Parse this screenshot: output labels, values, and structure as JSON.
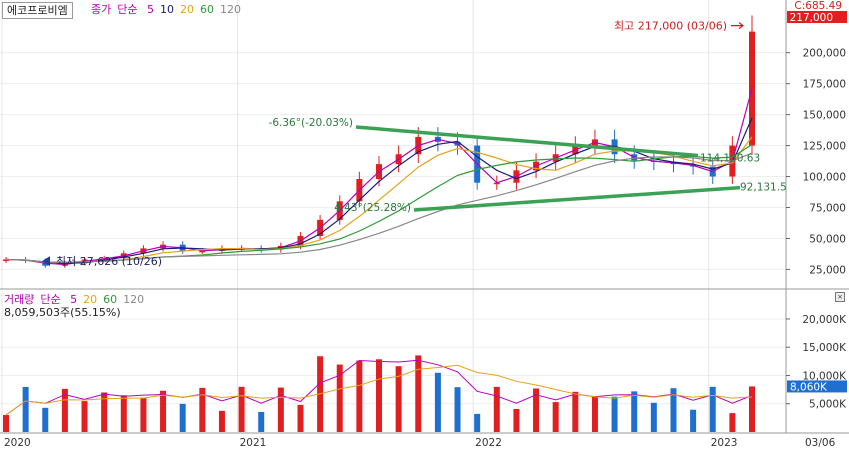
{
  "title": "에코프로비엠",
  "price_panel": {
    "legend": {
      "label": "종가",
      "method": "단순",
      "periods": [
        {
          "value": "5",
          "color": "#b800b8"
        },
        {
          "value": "10",
          "color": "#1b1b7a"
        },
        {
          "value": "20",
          "color": "#e6a21a"
        },
        {
          "value": "60",
          "color": "#2e9a3a"
        },
        {
          "value": "120",
          "color": "#888888"
        }
      ]
    },
    "corner_label": "C:685.49",
    "current_price_tag": "217,000",
    "high_annotation": "최고 217,000 (03/06)",
    "low_annotation": "최저 27,626 (10/26)",
    "trendline_labels": {
      "upper_start": "-6.36°(-20.03%)",
      "lower_start": "4.43°(25.28%)",
      "upper_end": "114,130.63",
      "lower_end": "92,131.5"
    }
  },
  "volume_panel": {
    "legend": {
      "label": "거래량",
      "method": "단순",
      "periods": [
        {
          "value": "5",
          "color": "#b800b8"
        },
        {
          "value": "20",
          "color": "#e6a21a"
        },
        {
          "value": "60",
          "color": "#2e9a3a"
        },
        {
          "value": "120",
          "color": "#888888"
        }
      ]
    },
    "last_volume_text": "8,059,503주(55.15%)",
    "current_volume_tag": "8,060K"
  },
  "x_axis": {
    "labels": [
      "2020",
      "2021",
      "2022",
      "2023"
    ],
    "cursor_label": "03/06"
  },
  "colors": {
    "up": "#e02020",
    "down": "#1f6fd0",
    "trendline": "#3aa155",
    "tag_background": "#e02020",
    "volume_tag_background": "#1f6fd0"
  },
  "chart_data": [
    {
      "type": "candlestick",
      "title": "에코프로비엠",
      "y_ticks": [
        25000,
        50000,
        75000,
        100000,
        125000,
        150000,
        175000,
        200000
      ],
      "y_tick_labels": [
        "25,000",
        "50,000",
        "75,000",
        "100,000",
        "125,000",
        "150,000",
        "175,000",
        "200,000"
      ],
      "ylim": [
        10000,
        228000
      ],
      "x_dates": [
        "2020-01",
        "2020-02",
        "2020-03",
        "2020-04",
        "2020-05",
        "2020-06",
        "2020-07",
        "2020-08",
        "2020-09",
        "2020-10",
        "2020-11",
        "2020-12",
        "2021-01",
        "2021-02",
        "2021-03",
        "2021-04",
        "2021-05",
        "2021-06",
        "2021-07",
        "2021-08",
        "2021-09",
        "2021-10",
        "2021-11",
        "2021-12",
        "2022-01",
        "2022-02",
        "2022-03",
        "2022-04",
        "2022-05",
        "2022-06",
        "2022-07",
        "2022-08",
        "2022-09",
        "2022-10",
        "2022-11",
        "2022-12",
        "2023-01",
        "2023-02",
        "2023-03"
      ],
      "close_approx": [
        33000,
        32000,
        28000,
        30000,
        33000,
        34000,
        38000,
        42000,
        45000,
        40000,
        40000,
        42000,
        42000,
        41000,
        44000,
        52000,
        65000,
        80000,
        98000,
        110000,
        118000,
        132000,
        128000,
        125000,
        95000,
        95000,
        105000,
        112000,
        118000,
        125000,
        130000,
        118000,
        113000,
        112000,
        110000,
        108000,
        100000,
        125000,
        217000
      ],
      "high": 217000,
      "high_date": "03/06",
      "low": 27626,
      "low_date": "10/26"
    },
    {
      "type": "bar",
      "title": "거래량",
      "unit": "K",
      "y_ticks": [
        5000,
        10000,
        15000,
        20000
      ],
      "y_tick_labels": [
        "5,000K",
        "10,000K",
        "15,000K",
        "20,000K"
      ],
      "ylim": [
        0,
        23000
      ],
      "last_value": 8060,
      "last_value_text": "8,059,503주(55.15%)"
    }
  ]
}
